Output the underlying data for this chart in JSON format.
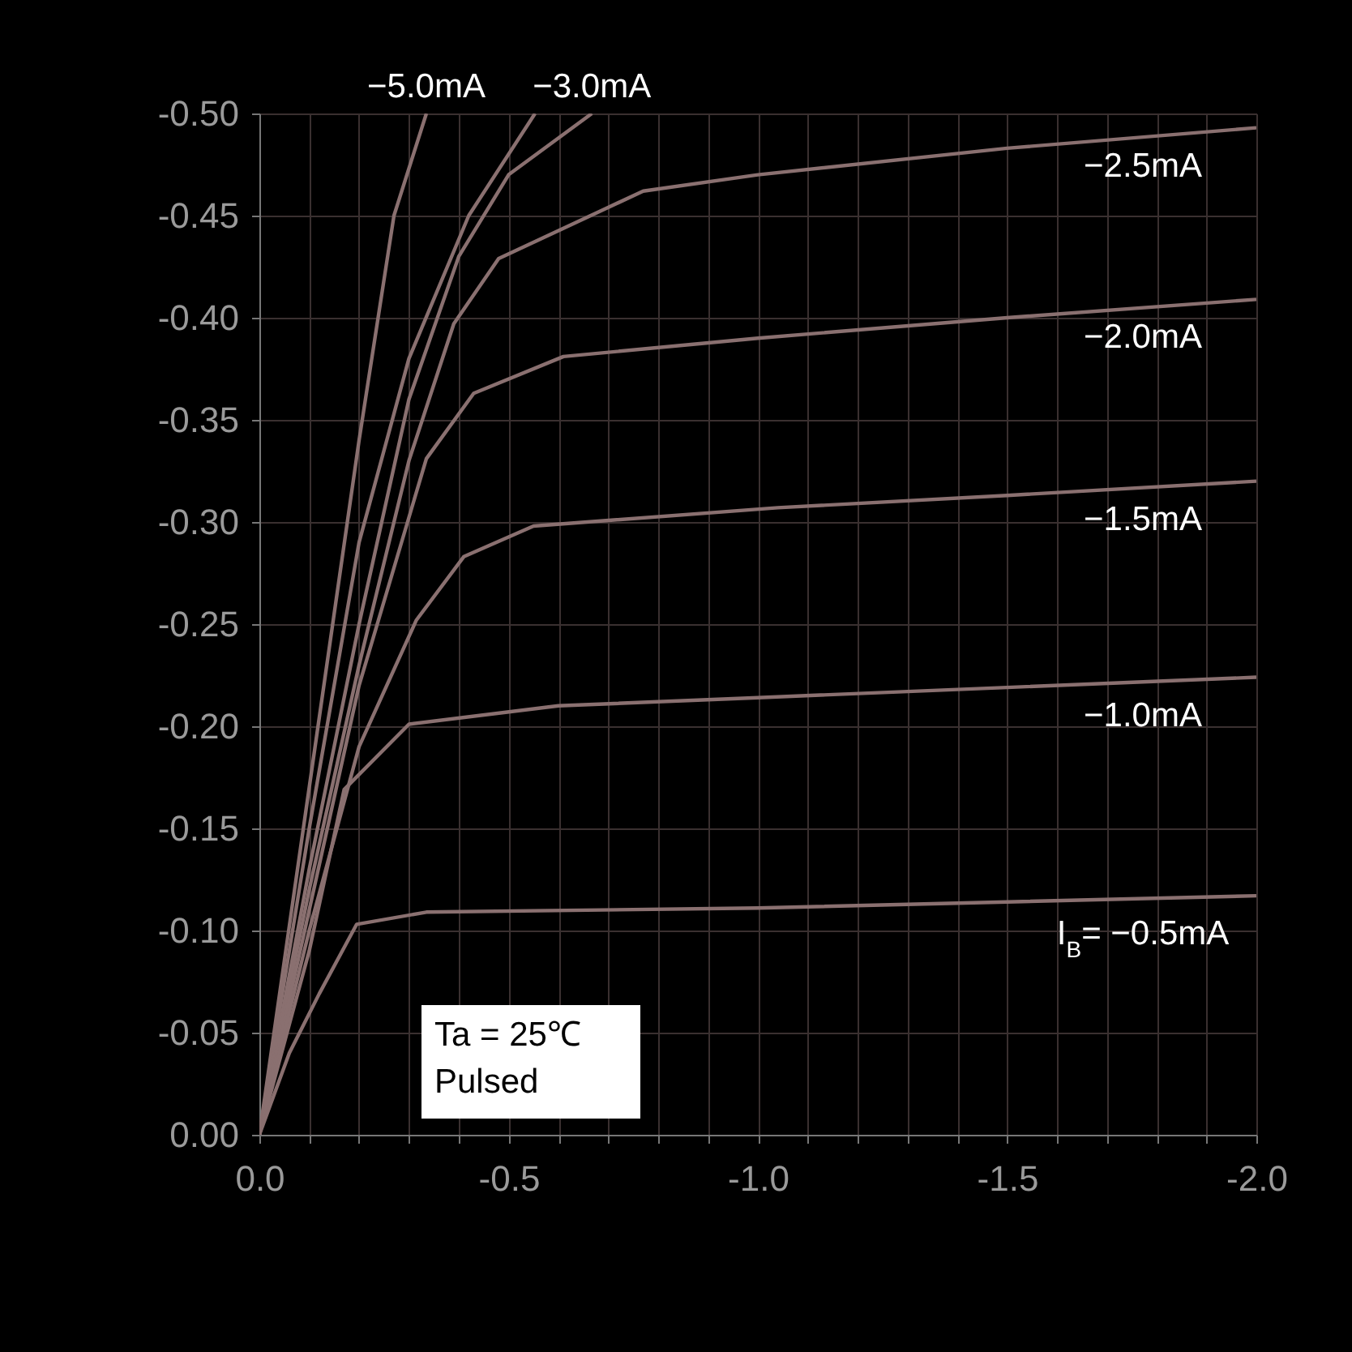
{
  "chart_data": {
    "type": "line",
    "xlim": [
      0,
      -2.0
    ],
    "ylim": [
      0,
      -0.5
    ],
    "xticks": [
      {
        "value": 0,
        "label": "0.0"
      },
      {
        "value": -0.1,
        "label": null
      },
      {
        "value": -0.2,
        "label": null
      },
      {
        "value": -0.3,
        "label": null
      },
      {
        "value": -0.4,
        "label": null
      },
      {
        "value": -0.5,
        "label": "-0.5"
      },
      {
        "value": -0.6,
        "label": null
      },
      {
        "value": -0.7,
        "label": null
      },
      {
        "value": -0.8,
        "label": null
      },
      {
        "value": -0.9,
        "label": null
      },
      {
        "value": -1.0,
        "label": "-1.0"
      },
      {
        "value": -1.1,
        "label": null
      },
      {
        "value": -1.2,
        "label": null
      },
      {
        "value": -1.3,
        "label": null
      },
      {
        "value": -1.4,
        "label": null
      },
      {
        "value": -1.5,
        "label": "-1.5"
      },
      {
        "value": -1.6,
        "label": null
      },
      {
        "value": -1.7,
        "label": null
      },
      {
        "value": -1.8,
        "label": null
      },
      {
        "value": -1.9,
        "label": null
      },
      {
        "value": -2.0,
        "label": "-2.0"
      }
    ],
    "yticks": [
      {
        "value": 0,
        "label": "0.00"
      },
      {
        "value": -0.05,
        "label": "-0.05"
      },
      {
        "value": -0.1,
        "label": "-0.10"
      },
      {
        "value": -0.15,
        "label": "-0.15"
      },
      {
        "value": -0.2,
        "label": "-0.20"
      },
      {
        "value": -0.25,
        "label": "-0.25"
      },
      {
        "value": -0.3,
        "label": "-0.30"
      },
      {
        "value": -0.35,
        "label": "-0.35"
      },
      {
        "value": -0.4,
        "label": "-0.40"
      },
      {
        "value": -0.45,
        "label": "-0.45"
      },
      {
        "value": -0.5,
        "label": "-0.50"
      }
    ],
    "grid": true,
    "legend": false,
    "line_style": "solid",
    "marker": "none",
    "annotations": [
      "Ta = 25℃\nPulsed"
    ],
    "series": [
      {
        "name": "−5.0mA",
        "color": "#8a7070",
        "x": [
          0,
          -0.1,
          -0.2,
          -0.27,
          -0.335
        ],
        "values": [
          0,
          -0.17,
          -0.34,
          -0.45,
          -0.5
        ]
      },
      {
        "color": "#8a7070",
        "x": [
          0,
          -0.1,
          -0.2,
          -0.3,
          -0.42,
          -0.553
        ],
        "values": [
          0,
          -0.15,
          -0.29,
          -0.38,
          -0.45,
          -0.5
        ]
      },
      {
        "name": "−3.0mA",
        "color": "#8a7070",
        "x": [
          0,
          -0.1,
          -0.2,
          -0.3,
          -0.4,
          -0.5,
          -0.667
        ],
        "values": [
          0,
          -0.13,
          -0.25,
          -0.36,
          -0.43,
          -0.47,
          -0.5
        ]
      },
      {
        "name": "−2.5mA",
        "color": "#8a7070",
        "x": [
          0,
          -0.1,
          -0.2,
          -0.3,
          -0.39,
          -0.48,
          -0.77,
          -1.0,
          -1.5,
          -2.0
        ],
        "values": [
          0,
          -0.12,
          -0.23,
          -0.33,
          -0.397,
          -0.429,
          -0.462,
          -0.47,
          -0.483,
          -0.493
        ]
      },
      {
        "name": "−2.0mA",
        "color": "#8a7070",
        "x": [
          0,
          -0.1,
          -0.2,
          -0.335,
          -0.43,
          -0.61,
          -1.0,
          -1.5,
          -2.0
        ],
        "values": [
          0,
          -0.11,
          -0.22,
          -0.331,
          -0.363,
          -0.381,
          -0.39,
          -0.4,
          -0.409
        ]
      },
      {
        "name": "−1.5mA",
        "color": "#8a7070",
        "x": [
          0,
          -0.1,
          -0.2,
          -0.315,
          -0.41,
          -0.55,
          -1.04,
          -1.5,
          -2.0
        ],
        "values": [
          0,
          -0.1,
          -0.19,
          -0.252,
          -0.283,
          -0.298,
          -0.307,
          -0.313,
          -0.32
        ]
      },
      {
        "name": "−1.0mA",
        "color": "#8a7070",
        "x": [
          0,
          -0.1,
          -0.17,
          -0.3,
          -0.6,
          -1.0,
          -1.5,
          -2.0
        ],
        "values": [
          0,
          -0.09,
          -0.169,
          -0.201,
          -0.21,
          -0.214,
          -0.219,
          -0.224
        ]
      },
      {
        "name": "I$_{B}$= −0.5mA",
        "color": "#8a7070",
        "x": [
          0,
          -0.06,
          -0.12,
          -0.195,
          -0.335,
          -1.0,
          -1.5,
          -2.0
        ],
        "values": [
          0,
          -0.04,
          -0.069,
          -0.103,
          -0.109,
          -0.111,
          -0.114,
          -0.117
        ]
      }
    ]
  }
}
